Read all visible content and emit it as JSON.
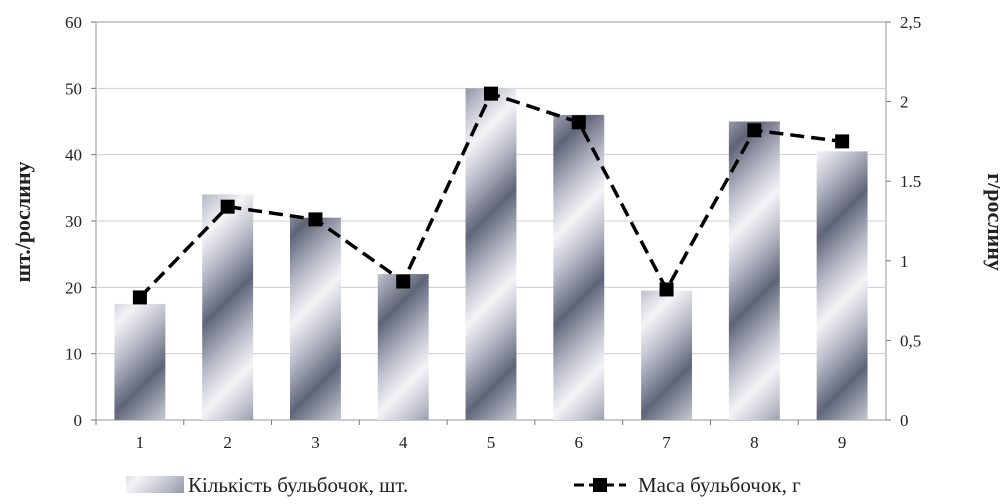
{
  "chart_data": {
    "type": "bar+line",
    "categories": [
      "1",
      "2",
      "3",
      "4",
      "5",
      "6",
      "7",
      "8",
      "9"
    ],
    "series": [
      {
        "name": "Кількість бульбочок, шт.",
        "type": "bar",
        "axis": "left",
        "values": [
          17.5,
          34,
          30.5,
          22,
          50,
          46,
          19.5,
          45,
          40.5
        ]
      },
      {
        "name": "Маса бульбочок, г",
        "type": "line",
        "axis": "right",
        "values": [
          0.77,
          1.34,
          1.26,
          0.87,
          2.05,
          1.87,
          0.82,
          1.82,
          1.75
        ]
      }
    ],
    "ylabel": "шт./рослину",
    "y2label": "г/рослину",
    "ylim": [
      0,
      60
    ],
    "y2lim": [
      0,
      2.5
    ],
    "yticks": [
      "0",
      "10",
      "20",
      "30",
      "40",
      "50",
      "60"
    ],
    "y2ticks": [
      "0",
      "0,5",
      "1",
      "1.5",
      "2",
      "2,5"
    ],
    "grid": true,
    "legend_position": "bottom",
    "colors": {
      "bar_dark": "#5f6478",
      "bar_light": "#f4f4f7",
      "line": "#000000",
      "marker": "#000000",
      "grid": "#cfcfcf"
    }
  }
}
